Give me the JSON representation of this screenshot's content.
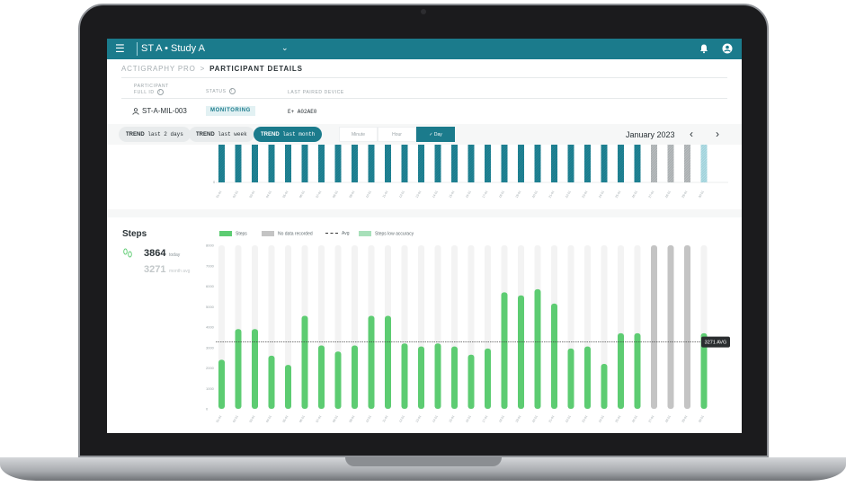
{
  "app": {
    "title": "ST A • Study A"
  },
  "breadcrumb": {
    "root": "ACTIGRAPHY PRO",
    "separator": ">",
    "current": "PARTICIPANT DETAILS"
  },
  "participant": {
    "id_label_line1": "PARTICIPANT",
    "id_label_line2": "FULL ID",
    "status_label": "STATUS",
    "device_label": "LAST PAIRED DEVICE",
    "id": "ST-A-MIL-003",
    "status": "MONITORING",
    "device": "E+ A02AE0"
  },
  "trend_chips": [
    {
      "label": "TREND",
      "value": "last 2 days",
      "active": false
    },
    {
      "label": "TREND",
      "value": "last week",
      "active": false
    },
    {
      "label": "TREND",
      "value": "last month",
      "active": true
    }
  ],
  "granularity": [
    {
      "label": "Minute",
      "active": false
    },
    {
      "label": "Hour",
      "active": false
    },
    {
      "label": "✓ Day",
      "active": true
    }
  ],
  "month_label": "January 2023",
  "nav": {
    "prev": "‹",
    "next": "›"
  },
  "colors": {
    "brand": "#1b7b8c",
    "steps": "#5dcc72",
    "no_data": "#c4c4c4",
    "low_accuracy": "#a8e0ba",
    "track": "#f3f3f3"
  },
  "steps_panel": {
    "title": "Steps",
    "today_value": "3864",
    "today_label": "today",
    "month_value": "3271",
    "month_label": "month avg",
    "avg_tag": "3271 AVG"
  },
  "legend": [
    {
      "label": "Steps",
      "kind": "swatch",
      "color": "#5dcc72"
    },
    {
      "label": "No data recorded",
      "kind": "swatch",
      "color": "#c4c4c4"
    },
    {
      "label": "Avg",
      "kind": "line",
      "color": "#333333"
    },
    {
      "label": "Steps low accuracy",
      "kind": "swatch",
      "color": "#a8e0ba"
    }
  ],
  "chart_data": [
    {
      "type": "bar",
      "categories": [
        "01-01",
        "02-01",
        "03-01",
        "04-01",
        "05-01",
        "06-01",
        "07-01",
        "08-01",
        "09-01",
        "10-01",
        "11-01",
        "12-01",
        "13-01",
        "14-01",
        "15-01",
        "16-01",
        "17-01",
        "18-01",
        "19-01",
        "20-01",
        "21-01",
        "22-01",
        "23-01",
        "24-01",
        "25-01",
        "26-01",
        "27-01",
        "28-01",
        "29-01",
        "30-01"
      ],
      "states": [
        "r",
        "r",
        "r",
        "r",
        "r",
        "r",
        "r",
        "r",
        "r",
        "r",
        "r",
        "r",
        "r",
        "r",
        "r",
        "r",
        "r",
        "r",
        "r",
        "r",
        "r",
        "r",
        "r",
        "r",
        "r",
        "r",
        "n",
        "n",
        "n",
        "l"
      ],
      "ylabel": "",
      "xlabel": ""
    },
    {
      "type": "bar",
      "categories": [
        "01-01",
        "02-01",
        "03-01",
        "04-01",
        "05-01",
        "06-01",
        "07-01",
        "08-01",
        "09-01",
        "10-01",
        "11-01",
        "12-01",
        "13-01",
        "14-01",
        "15-01",
        "16-01",
        "17-01",
        "18-01",
        "19-01",
        "20-01",
        "21-01",
        "22-01",
        "23-01",
        "24-01",
        "25-01",
        "26-01",
        "27-01",
        "28-01",
        "29-01",
        "30-01"
      ],
      "values": [
        2400,
        3900,
        3900,
        2600,
        2150,
        4550,
        3100,
        2800,
        3100,
        4550,
        4550,
        3200,
        3050,
        3200,
        3050,
        2650,
        2950,
        5700,
        5550,
        5850,
        5150,
        2950,
        3050,
        2200,
        3700,
        3700,
        8000,
        8000,
        8000,
        3700
      ],
      "states": [
        "s",
        "s",
        "s",
        "s",
        "s",
        "s",
        "s",
        "s",
        "s",
        "s",
        "s",
        "s",
        "s",
        "s",
        "s",
        "s",
        "s",
        "s",
        "s",
        "s",
        "s",
        "s",
        "s",
        "s",
        "s",
        "s",
        "n",
        "n",
        "n",
        "s"
      ],
      "ylim": [
        0,
        8000
      ],
      "yticks": [
        0,
        1000,
        2000,
        3000,
        4000,
        5000,
        6000,
        7000,
        8000
      ],
      "average": 3271,
      "ylabel": "",
      "xlabel": ""
    }
  ]
}
